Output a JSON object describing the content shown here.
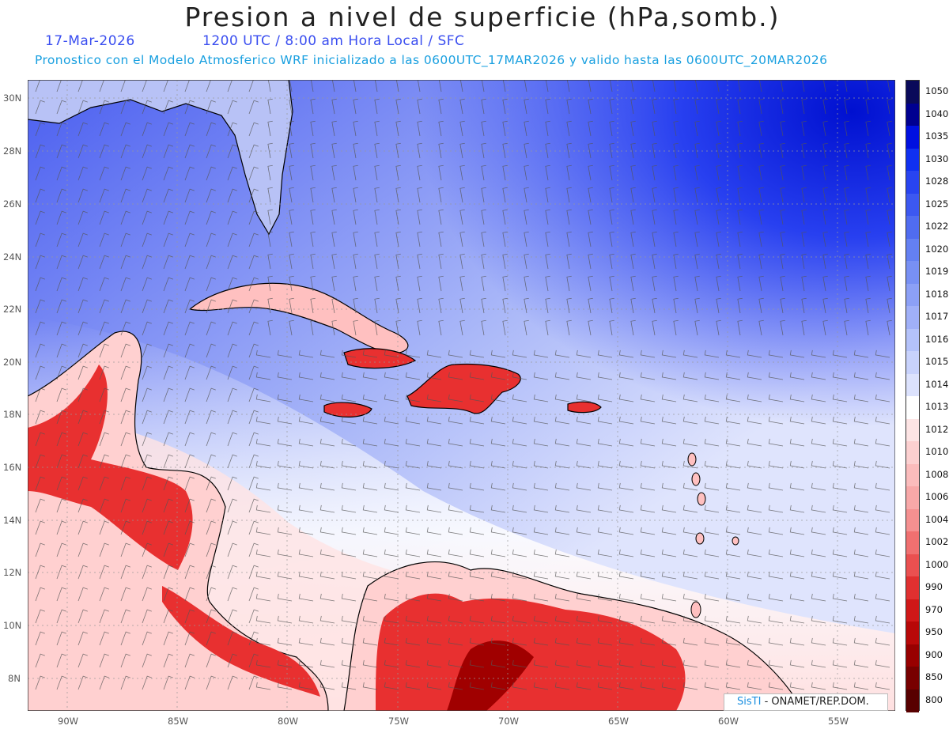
{
  "header": {
    "title": "Presion a nivel de superficie (hPa,somb.)",
    "date": "17-Mar-2026",
    "time": "1200 UTC / 8:00 am Hora Local / SFC",
    "forecast_info": "Pronostico con el Modelo Atmosferico WRF inicializado a las 0600UTC_17MAR2026 y valido hasta las  0600UTC_20MAR2026"
  },
  "map": {
    "lat_labels": [
      "30N",
      "28N",
      "26N",
      "24N",
      "22N",
      "20N",
      "18N",
      "16N",
      "14N",
      "12N",
      "10N",
      "8N"
    ],
    "lon_labels": [
      "90W",
      "85W",
      "80W",
      "75W",
      "70W",
      "65W",
      "60W",
      "55W"
    ],
    "ocean_color": "#c8cdf5",
    "land_high_color": "#e83030",
    "land_low_color": "#ffd8d8"
  },
  "colorbar": {
    "levels": [
      "1050",
      "1040",
      "1035",
      "1030",
      "1028",
      "1025",
      "1022",
      "1020",
      "1019",
      "1018",
      "1017",
      "1016",
      "1015",
      "1014",
      "1013",
      "1012",
      "1010",
      "1008",
      "1006",
      "1004",
      "1002",
      "1000",
      "990",
      "970",
      "950",
      "900",
      "850",
      "800"
    ],
    "colors": [
      "#0a0a5a",
      "#000090",
      "#0010e0",
      "#1030f0",
      "#2844f0",
      "#3c58f0",
      "#506cf0",
      "#6480f2",
      "#7890f4",
      "#8ca0f6",
      "#a0b0f8",
      "#b4c2fa",
      "#c8d2fc",
      "#dce2fd",
      "#ffffff",
      "#fde4e4",
      "#fcd0d0",
      "#fbbcbc",
      "#f8a8a8",
      "#f59090",
      "#f07070",
      "#ea5050",
      "#e03030",
      "#d01818",
      "#b80808",
      "#980000",
      "#780000",
      "#580000"
    ]
  },
  "credit": {
    "brand": "SisTI",
    "text": "- ONAMET/REP.DOM."
  }
}
